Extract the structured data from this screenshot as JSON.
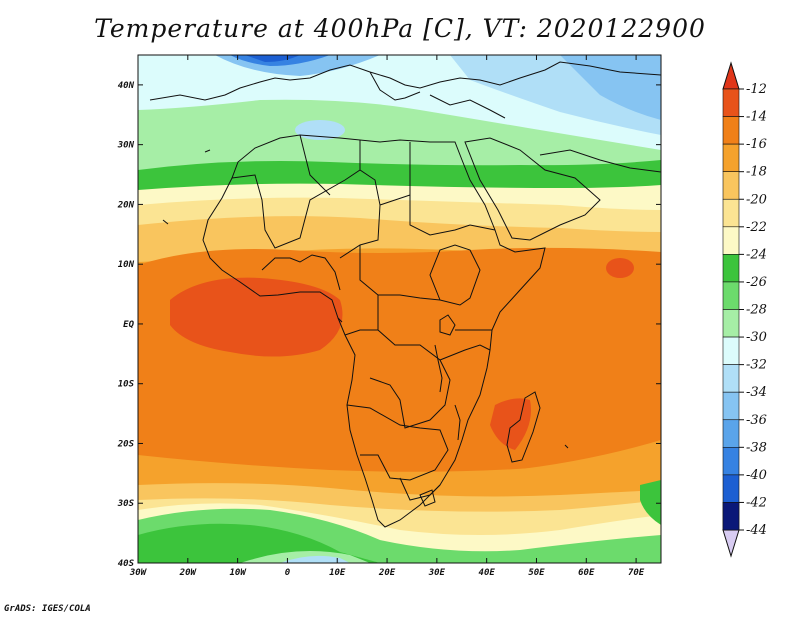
{
  "title": "Temperature at 400hPa [C], VT: 2020122900",
  "credit": "GrADS: IGES/COLA",
  "map": {
    "lon_range": [
      -30,
      75
    ],
    "lat_range": [
      -40,
      45
    ],
    "lat_ticks": [
      {
        "value": 40,
        "label": "40N"
      },
      {
        "value": 30,
        "label": "30N"
      },
      {
        "value": 20,
        "label": "20N"
      },
      {
        "value": 10,
        "label": "10N"
      },
      {
        "value": 0,
        "label": "EQ"
      },
      {
        "value": -10,
        "label": "10S"
      },
      {
        "value": -20,
        "label": "20S"
      },
      {
        "value": -30,
        "label": "30S"
      },
      {
        "value": -40,
        "label": "40S"
      }
    ],
    "lon_ticks": [
      {
        "value": -30,
        "label": "30W"
      },
      {
        "value": -20,
        "label": "20W"
      },
      {
        "value": -10,
        "label": "10W"
      },
      {
        "value": 0,
        "label": "0"
      },
      {
        "value": 10,
        "label": "10E"
      },
      {
        "value": 20,
        "label": "20E"
      },
      {
        "value": 30,
        "label": "30E"
      },
      {
        "value": 40,
        "label": "40E"
      },
      {
        "value": 50,
        "label": "50E"
      },
      {
        "value": 60,
        "label": "60E"
      },
      {
        "value": 70,
        "label": "70E"
      }
    ]
  },
  "colorbar": {
    "labels": [
      "-12",
      "-14",
      "-16",
      "-18",
      "-20",
      "-22",
      "-24",
      "-26",
      "-28",
      "-30",
      "-32",
      "-34",
      "-36",
      "-38",
      "-40",
      "-42",
      "-44"
    ],
    "colors_top_to_bottom": [
      "#e8531a",
      "#f08018",
      "#f5a22c",
      "#f9c55e",
      "#fbe493",
      "#fdf9c6",
      "#3cc43c",
      "#6cdb6c",
      "#a6eea6",
      "#dcfcfc",
      "#b0dff7",
      "#86c4f2",
      "#5aa4ea",
      "#3682e2",
      "#1c5fd2",
      "#0f3cb4",
      "#0a1878"
    ],
    "top_arrow_color": "#e0361a",
    "bottom_arrow_color": "#d8ccf2"
  }
}
